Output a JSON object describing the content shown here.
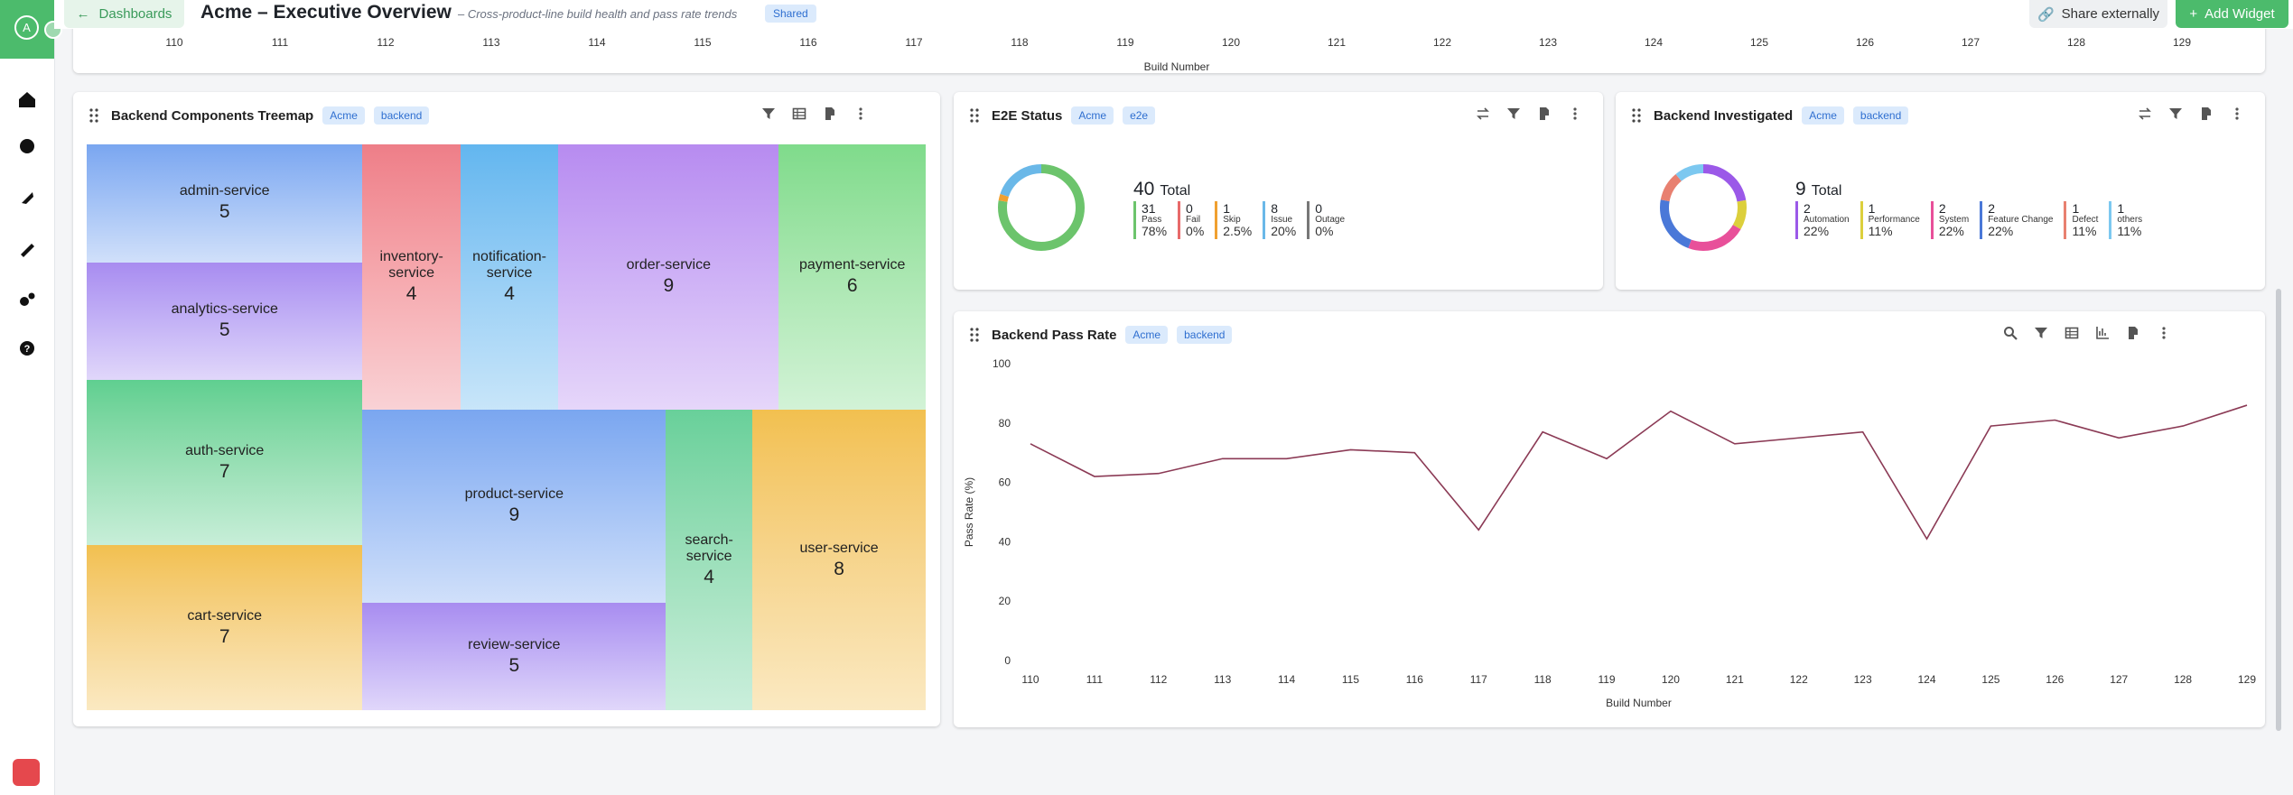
{
  "header": {
    "avatar": "A",
    "back": "Dashboards",
    "title": "Acme – Executive Overview",
    "subtitle": "– Cross-product-line build health and pass rate trends",
    "badge": "Shared",
    "share": "Share externally",
    "add": "Add Widget"
  },
  "top_widget": {
    "xticks": [
      110,
      111,
      112,
      113,
      114,
      115,
      116,
      117,
      118,
      119,
      120,
      121,
      122,
      123,
      124,
      125,
      126,
      127,
      128,
      129
    ],
    "xlim": [
      110,
      129
    ],
    "xlabel": "Build Number"
  },
  "chart_data": [
    {
      "type": "treemap",
      "title": "Backend Components Treemap",
      "tags": [
        "Acme",
        "backend"
      ],
      "categories": [
        "admin-service",
        "analytics-service",
        "auth-service",
        "cart-service",
        "inventory-service",
        "notification-service",
        "order-service",
        "payment-service",
        "product-service",
        "review-service",
        "search-service",
        "user-service"
      ],
      "values": [
        5,
        5,
        7,
        7,
        4,
        4,
        9,
        6,
        9,
        5,
        4,
        8
      ],
      "colors": [
        "#7aa6f0",
        "#a88cf0",
        "#5fcf90",
        "#f2c04f",
        "#ee7e88",
        "#62b6ef",
        "#b78bf0",
        "#7fdb8b",
        "#7aa6f0",
        "#a88cf0",
        "#68d09a",
        "#f2c04f"
      ]
    },
    {
      "type": "donut",
      "title": "E2E Status",
      "tags": [
        "Acme",
        "e2e"
      ],
      "total": 40,
      "total_label": "Total",
      "categories": [
        "Pass",
        "Fail",
        "Skip",
        "Issue",
        "Outage"
      ],
      "values": [
        31,
        0,
        1,
        8,
        0
      ],
      "value_labels": [
        "78%",
        "0%",
        "2.5%",
        "20%",
        "0%"
      ],
      "colors": [
        "#6cc46c",
        "#e86a6a",
        "#f0a030",
        "#6ab8e8",
        "#777777"
      ]
    },
    {
      "type": "donut",
      "title": "Backend Investigated",
      "tags": [
        "Acme",
        "backend"
      ],
      "total": 9,
      "total_label": "Total",
      "categories": [
        "Automation",
        "Performance",
        "System",
        "Feature Change",
        "Defect",
        "others"
      ],
      "values": [
        2,
        1,
        2,
        2,
        1,
        1
      ],
      "value_labels": [
        "22%",
        "11%",
        "22%",
        "22%",
        "11%",
        "11%"
      ],
      "colors": [
        "#9b59e8",
        "#dccf3c",
        "#e8509a",
        "#4a78d8",
        "#e88070",
        "#7cc8f0"
      ]
    },
    {
      "type": "line",
      "title": "Backend Pass Rate",
      "tags": [
        "Acme",
        "backend"
      ],
      "x": [
        110,
        111,
        112,
        113,
        114,
        115,
        116,
        117,
        118,
        119,
        120,
        121,
        122,
        123,
        124,
        125,
        126,
        127,
        128,
        129
      ],
      "values": [
        73,
        62,
        63,
        68,
        68,
        71,
        70,
        44,
        77,
        68,
        84,
        73,
        75,
        77,
        41,
        79,
        81,
        75,
        79,
        86
      ],
      "color": "#8b3a55",
      "xlim": [
        110,
        129
      ],
      "xticks": [
        110,
        111,
        112,
        113,
        114,
        115,
        116,
        117,
        118,
        119,
        120,
        121,
        122,
        123,
        124,
        125,
        126,
        127,
        128,
        129
      ],
      "ylim": [
        0,
        100
      ],
      "yticks": [
        0,
        20,
        40,
        60,
        80,
        100
      ],
      "xlabel": "Build Number",
      "ylabel": "Pass Rate (%)",
      "grid": false
    }
  ]
}
